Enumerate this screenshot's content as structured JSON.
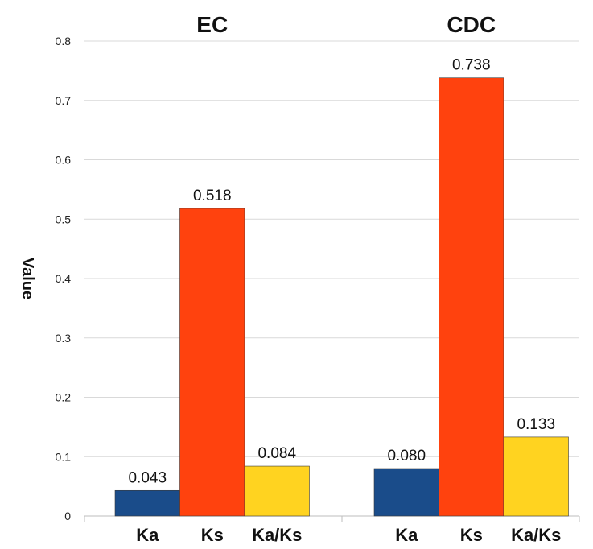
{
  "chart_data": {
    "type": "bar",
    "ylabel": "Value",
    "ylim": [
      0,
      0.8
    ],
    "yticks": [
      "0",
      "0.1",
      "0.2",
      "0.3",
      "0.4",
      "0.5",
      "0.6",
      "0.7",
      "0.8"
    ],
    "grid": true,
    "colors": {
      "Ka": "#1a4c8a",
      "Ks": "#ff420e",
      "Ka/Ks": "#ffd320"
    },
    "groups": [
      {
        "title": "EC",
        "categories": [
          "Ka",
          "Ks",
          "Ka/Ks"
        ],
        "values": [
          0.043,
          0.518,
          0.084
        ],
        "labels": [
          "0.043",
          "0.518",
          "0.084"
        ]
      },
      {
        "title": "CDC",
        "categories": [
          "Ka",
          "Ks",
          "Ka/Ks"
        ],
        "values": [
          0.08,
          0.738,
          0.133
        ],
        "labels": [
          "0.080",
          "0.738",
          "0.133"
        ]
      }
    ]
  }
}
